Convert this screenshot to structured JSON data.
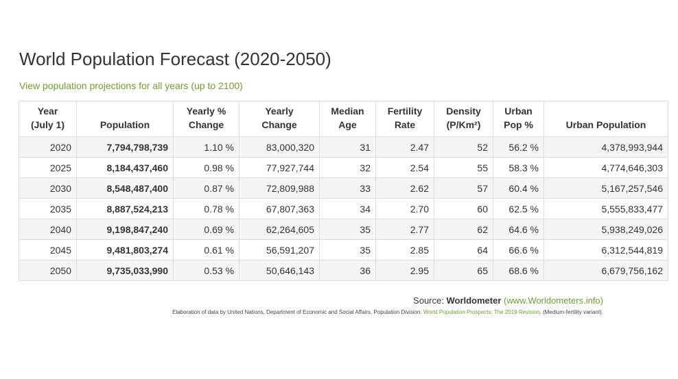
{
  "page": {
    "title": "World Population Forecast (2020-2050)",
    "link_text": "View population projections for all years (up to 2100)"
  },
  "table": {
    "headers": [
      {
        "line1": "Year",
        "line2": "(July 1)"
      },
      {
        "line1": "",
        "line2": "Population"
      },
      {
        "line1": "Yearly %",
        "line2": "Change"
      },
      {
        "line1": "Yearly",
        "line2": "Change"
      },
      {
        "line1": "Median",
        "line2": "Age"
      },
      {
        "line1": "Fertility",
        "line2": "Rate"
      },
      {
        "line1": "Density",
        "line2": "(P/Km²)"
      },
      {
        "line1": "Urban",
        "line2": "Pop %"
      },
      {
        "line1": "",
        "line2": "Urban Population"
      }
    ],
    "rows": [
      [
        "2020",
        "7,794,798,739",
        "1.10 %",
        "83,000,320",
        "31",
        "2.47",
        "52",
        "56.2 %",
        "4,378,993,944"
      ],
      [
        "2025",
        "8,184,437,460",
        "0.98 %",
        "77,927,744",
        "32",
        "2.54",
        "55",
        "58.3 %",
        "4,774,646,303"
      ],
      [
        "2030",
        "8,548,487,400",
        "0.87 %",
        "72,809,988",
        "33",
        "2.62",
        "57",
        "60.4 %",
        "5,167,257,546"
      ],
      [
        "2035",
        "8,887,524,213",
        "0.78 %",
        "67,807,363",
        "34",
        "2.70",
        "60",
        "62.5 %",
        "5,555,833,477"
      ],
      [
        "2040",
        "9,198,847,240",
        "0.69 %",
        "62,264,605",
        "35",
        "2.77",
        "62",
        "64.6 %",
        "5,938,249,026"
      ],
      [
        "2045",
        "9,481,803,274",
        "0.61 %",
        "56,591,207",
        "35",
        "2.85",
        "64",
        "66.6 %",
        "6,312,544,819"
      ],
      [
        "2050",
        "9,735,033,990",
        "0.53 %",
        "50,646,143",
        "36",
        "2.95",
        "65",
        "68.6 %",
        "6,679,756,162"
      ]
    ]
  },
  "source": {
    "label": "Source: ",
    "name": "Worldometer",
    "link_text": "(www.Worldometers.info)"
  },
  "note": {
    "text": "Elaboration of data by United Nations, Department of Economic and Social Affairs, Population Division. ",
    "link_text": "World Population Prospects: The 2019 Revision",
    "suffix": ". (Medium-fertility variant)."
  },
  "colors": {
    "accent_green": "#6e9e2e",
    "stripe_gray": "#f5f5f5",
    "border_gray": "#dddddd",
    "text_dark": "#333333"
  }
}
